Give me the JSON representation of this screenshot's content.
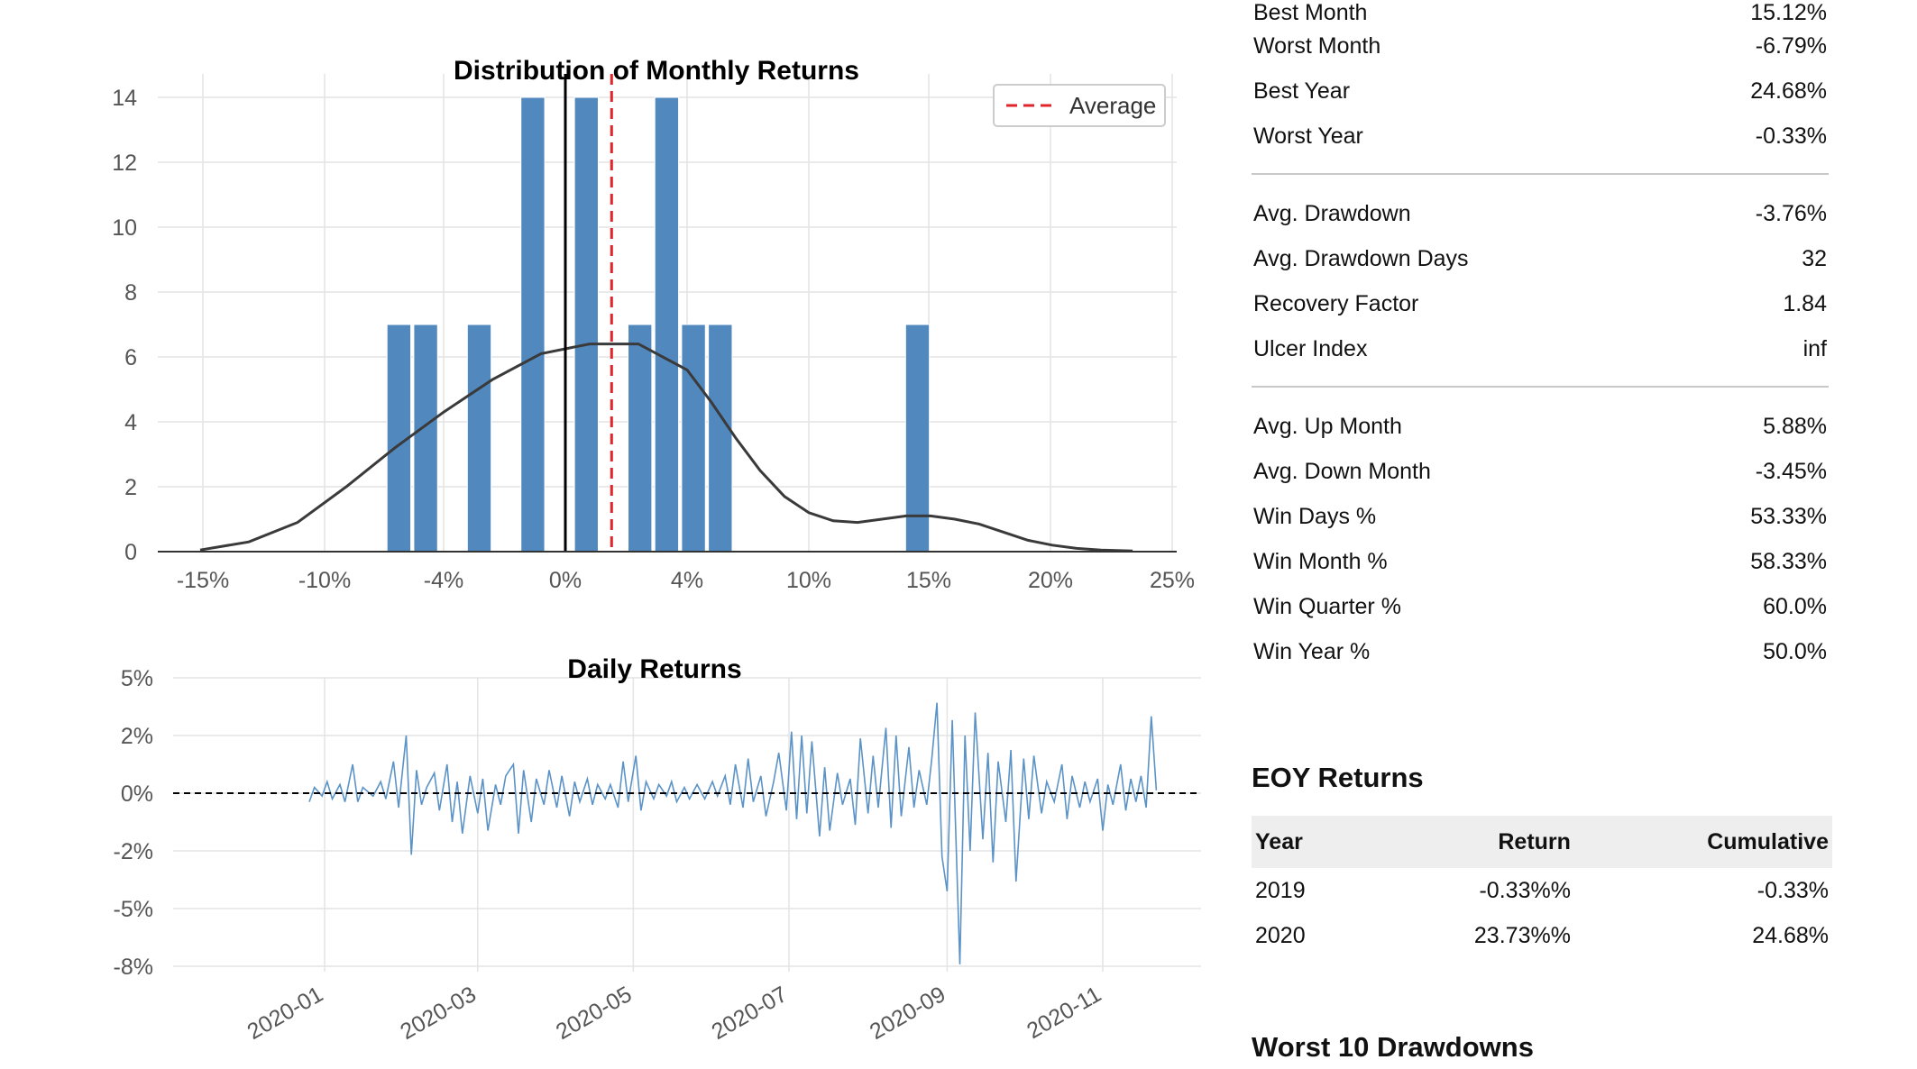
{
  "metrics": {
    "groups": [
      [
        {
          "label": "Best Month",
          "value": "15.12%"
        },
        {
          "label": "Worst Month",
          "value": "-6.79%"
        },
        {
          "label": "Best Year",
          "value": "24.68%"
        },
        {
          "label": "Worst Year",
          "value": "-0.33%"
        }
      ],
      [
        {
          "label": "Avg. Drawdown",
          "value": "-3.76%"
        },
        {
          "label": "Avg. Drawdown Days",
          "value": "32"
        },
        {
          "label": "Recovery Factor",
          "value": "1.84"
        },
        {
          "label": "Ulcer Index",
          "value": "inf"
        }
      ],
      [
        {
          "label": "Avg. Up Month",
          "value": "5.88%"
        },
        {
          "label": "Avg. Down Month",
          "value": "-3.45%"
        },
        {
          "label": "Win Days %",
          "value": "53.33%"
        },
        {
          "label": "Win Month %",
          "value": "58.33%"
        },
        {
          "label": "Win Quarter %",
          "value": "60.0%"
        },
        {
          "label": "Win Year %",
          "value": "50.0%"
        }
      ]
    ]
  },
  "eoy": {
    "title": "EOY Returns",
    "headers": [
      "Year",
      "Return",
      "Cumulative"
    ],
    "rows": [
      [
        "2019",
        "-0.33%%",
        "-0.33%"
      ],
      [
        "2020",
        "23.73%%",
        "24.68%"
      ]
    ]
  },
  "drawdowns": {
    "title": "Worst 10 Drawdowns"
  },
  "colors": {
    "bar": "#5188bd",
    "kde": "#3a3a3a",
    "average": "#e0262b",
    "grid": "#e4e4e4",
    "daily_line": "#5b93c7"
  },
  "chart_data": [
    {
      "type": "bar",
      "title": "Distribution of Monthly Returns",
      "xlabel": "",
      "ylabel": "",
      "x_tick_labels": [
        "-15%",
        "-10%",
        "-4%",
        "0%",
        "4%",
        "10%",
        "15%",
        "20%",
        "25%"
      ],
      "y_tick_labels": [
        "0",
        "2",
        "4",
        "6",
        "8",
        "10",
        "12",
        "14"
      ],
      "ylim": [
        0,
        14
      ],
      "legend": {
        "entries": [
          "Average"
        ],
        "placement": "top-right"
      },
      "series": [
        {
          "kind": "histogram",
          "bins": [
            {
              "x": -6.8,
              "count": 7
            },
            {
              "x": -5.7,
              "count": 7
            },
            {
              "x": -3.5,
              "count": 7
            },
            {
              "x": -1.3,
              "count": 14
            },
            {
              "x": 0.9,
              "count": 14
            },
            {
              "x": 3.1,
              "count": 7
            },
            {
              "x": 4.2,
              "count": 14
            },
            {
              "x": 5.3,
              "count": 7
            },
            {
              "x": 6.4,
              "count": 7
            },
            {
              "x": 14.5,
              "count": 7
            }
          ]
        },
        {
          "kind": "kde",
          "points": [
            [
              -15,
              0.05
            ],
            [
              -13,
              0.3
            ],
            [
              -11,
              0.9
            ],
            [
              -9,
              2.0
            ],
            [
              -7,
              3.2
            ],
            [
              -5,
              4.3
            ],
            [
              -3,
              5.3
            ],
            [
              -1,
              6.1
            ],
            [
              1,
              6.4
            ],
            [
              3,
              6.4
            ],
            [
              5,
              5.6
            ],
            [
              6,
              4.6
            ],
            [
              7,
              3.5
            ],
            [
              8,
              2.5
            ],
            [
              9,
              1.7
            ],
            [
              10,
              1.2
            ],
            [
              11,
              0.95
            ],
            [
              12,
              0.9
            ],
            [
              13,
              1.0
            ],
            [
              14,
              1.1
            ],
            [
              15,
              1.1
            ],
            [
              16,
              1.0
            ],
            [
              17,
              0.85
            ],
            [
              18,
              0.6
            ],
            [
              19,
              0.35
            ],
            [
              20,
              0.2
            ],
            [
              21,
              0.1
            ],
            [
              22,
              0.05
            ],
            [
              23.3,
              0.02
            ]
          ]
        },
        {
          "kind": "vline",
          "name": "Average",
          "x": 1.9
        },
        {
          "kind": "vline",
          "name": "zero",
          "x": 0
        }
      ]
    },
    {
      "type": "line",
      "title": "Daily Returns",
      "xlabel": "",
      "ylabel": "",
      "x_tick_labels": [
        "2020-01",
        "2020-03",
        "2020-05",
        "2020-07",
        "2020-09",
        "2020-11"
      ],
      "y_tick_labels": [
        "5%",
        "2%",
        "0%",
        "-2%",
        "-5%",
        "-8%"
      ],
      "ylim": [
        -8,
        5
      ],
      "x_range": [
        "2019-11-20",
        "2020-12-05"
      ],
      "series": [
        {
          "points": [
            [
              "2019-12-26",
              -0.3
            ],
            [
              "2019-12-28",
              0.2
            ],
            [
              "2019-12-31",
              -0.1
            ],
            [
              "2020-01-02",
              0.4
            ],
            [
              "2020-01-04",
              -0.2
            ],
            [
              "2020-01-07",
              0.3
            ],
            [
              "2020-01-09",
              -0.3
            ],
            [
              "2020-01-12",
              1.0
            ],
            [
              "2020-01-14",
              -0.3
            ],
            [
              "2020-01-16",
              0.2
            ],
            [
              "2020-01-20",
              -0.1
            ],
            [
              "2020-01-23",
              0.4
            ],
            [
              "2020-01-25",
              -0.2
            ],
            [
              "2020-01-28",
              1.1
            ],
            [
              "2020-01-30",
              -0.5
            ],
            [
              "2020-02-02",
              2.0
            ],
            [
              "2020-02-04",
              -2.2
            ],
            [
              "2020-02-06",
              0.8
            ],
            [
              "2020-02-08",
              -0.4
            ],
            [
              "2020-02-10",
              0.2
            ],
            [
              "2020-02-13",
              0.7
            ],
            [
              "2020-02-15",
              -0.6
            ],
            [
              "2020-02-18",
              1.0
            ],
            [
              "2020-02-20",
              -1.0
            ],
            [
              "2020-02-22",
              0.4
            ],
            [
              "2020-02-24",
              -1.4
            ],
            [
              "2020-02-27",
              0.6
            ],
            [
              "2020-03-01",
              -0.7
            ],
            [
              "2020-03-03",
              0.5
            ],
            [
              "2020-03-05",
              -1.3
            ],
            [
              "2020-03-08",
              0.3
            ],
            [
              "2020-03-10",
              -0.4
            ],
            [
              "2020-03-12",
              0.6
            ],
            [
              "2020-03-15",
              1.0
            ],
            [
              "2020-03-17",
              -1.4
            ],
            [
              "2020-03-19",
              0.8
            ],
            [
              "2020-03-22",
              -1.0
            ],
            [
              "2020-03-24",
              0.5
            ],
            [
              "2020-03-27",
              -0.4
            ],
            [
              "2020-03-29",
              0.8
            ],
            [
              "2020-04-01",
              -0.5
            ],
            [
              "2020-04-03",
              0.6
            ],
            [
              "2020-04-06",
              -0.8
            ],
            [
              "2020-04-08",
              0.4
            ],
            [
              "2020-04-10",
              -0.3
            ],
            [
              "2020-04-13",
              0.5
            ],
            [
              "2020-04-15",
              -0.4
            ],
            [
              "2020-04-17",
              0.3
            ],
            [
              "2020-04-20",
              -0.2
            ],
            [
              "2020-04-22",
              0.3
            ],
            [
              "2020-04-25",
              -0.5
            ],
            [
              "2020-04-27",
              1.1
            ],
            [
              "2020-04-29",
              -0.3
            ],
            [
              "2020-05-02",
              1.3
            ],
            [
              "2020-05-04",
              -0.6
            ],
            [
              "2020-05-06",
              0.4
            ],
            [
              "2020-05-09",
              -0.2
            ],
            [
              "2020-05-11",
              0.3
            ],
            [
              "2020-05-14",
              -0.1
            ],
            [
              "2020-05-16",
              0.4
            ],
            [
              "2020-05-18",
              -0.3
            ],
            [
              "2020-05-21",
              0.2
            ],
            [
              "2020-05-23",
              -0.2
            ],
            [
              "2020-05-26",
              0.3
            ],
            [
              "2020-05-29",
              -0.2
            ],
            [
              "2020-06-01",
              0.4
            ],
            [
              "2020-06-03",
              -0.1
            ],
            [
              "2020-06-06",
              0.6
            ],
            [
              "2020-06-08",
              -0.4
            ],
            [
              "2020-06-10",
              1.0
            ],
            [
              "2020-06-13",
              -0.5
            ],
            [
              "2020-06-15",
              1.2
            ],
            [
              "2020-06-17",
              -0.3
            ],
            [
              "2020-06-20",
              0.6
            ],
            [
              "2020-06-22",
              -0.8
            ],
            [
              "2020-06-25",
              0.4
            ],
            [
              "2020-06-27",
              1.4
            ],
            [
              "2020-06-30",
              -0.6
            ],
            [
              "2020-07-02",
              2.2
            ],
            [
              "2020-07-04",
              -0.9
            ],
            [
              "2020-07-06",
              2.0
            ],
            [
              "2020-07-08",
              -0.7
            ],
            [
              "2020-07-10",
              1.8
            ],
            [
              "2020-07-13",
              -1.5
            ],
            [
              "2020-07-15",
              0.9
            ],
            [
              "2020-07-17",
              -1.3
            ],
            [
              "2020-07-20",
              0.7
            ],
            [
              "2020-07-22",
              -0.4
            ],
            [
              "2020-07-25",
              0.5
            ],
            [
              "2020-07-27",
              -1.1
            ],
            [
              "2020-07-29",
              1.9
            ],
            [
              "2020-08-01",
              -0.7
            ],
            [
              "2020-08-03",
              1.3
            ],
            [
              "2020-08-05",
              -0.5
            ],
            [
              "2020-08-08",
              2.4
            ],
            [
              "2020-08-10",
              -1.2
            ],
            [
              "2020-08-12",
              2.0
            ],
            [
              "2020-08-14",
              -0.8
            ],
            [
              "2020-08-17",
              1.6
            ],
            [
              "2020-08-19",
              -0.5
            ],
            [
              "2020-08-21",
              0.8
            ],
            [
              "2020-08-24",
              -0.4
            ],
            [
              "2020-08-26",
              1.2
            ],
            [
              "2020-08-28",
              3.7
            ],
            [
              "2020-08-30",
              -2.3
            ],
            [
              "2020-09-01",
              -4.1
            ],
            [
              "2020-09-03",
              2.8
            ],
            [
              "2020-09-06",
              -7.9
            ],
            [
              "2020-09-08",
              2.0
            ],
            [
              "2020-09-10",
              -2.0
            ],
            [
              "2020-09-12",
              3.2
            ],
            [
              "2020-09-15",
              -1.6
            ],
            [
              "2020-09-17",
              1.4
            ],
            [
              "2020-09-19",
              -2.6
            ],
            [
              "2020-09-21",
              1.1
            ],
            [
              "2020-09-24",
              -1.0
            ],
            [
              "2020-09-26",
              1.5
            ],
            [
              "2020-09-28",
              -3.6
            ],
            [
              "2020-10-01",
              1.2
            ],
            [
              "2020-10-03",
              -0.9
            ],
            [
              "2020-10-05",
              1.3
            ],
            [
              "2020-10-08",
              -0.7
            ],
            [
              "2020-10-10",
              0.4
            ],
            [
              "2020-10-13",
              -0.3
            ],
            [
              "2020-10-16",
              1.0
            ],
            [
              "2020-10-18",
              -0.9
            ],
            [
              "2020-10-20",
              0.6
            ],
            [
              "2020-10-23",
              -0.5
            ],
            [
              "2020-10-25",
              0.4
            ],
            [
              "2020-10-27",
              -0.3
            ],
            [
              "2020-10-30",
              0.5
            ],
            [
              "2020-11-01",
              -1.3
            ],
            [
              "2020-11-03",
              0.3
            ],
            [
              "2020-11-05",
              -0.4
            ],
            [
              "2020-11-08",
              1.0
            ],
            [
              "2020-11-10",
              -0.6
            ],
            [
              "2020-11-12",
              0.5
            ],
            [
              "2020-11-14",
              -0.3
            ],
            [
              "2020-11-16",
              0.6
            ],
            [
              "2020-11-18",
              -0.5
            ],
            [
              "2020-11-20",
              3.0
            ],
            [
              "2020-11-22",
              0.1
            ]
          ]
        },
        {
          "kind": "hline",
          "name": "zero",
          "y": 0
        }
      ]
    }
  ]
}
